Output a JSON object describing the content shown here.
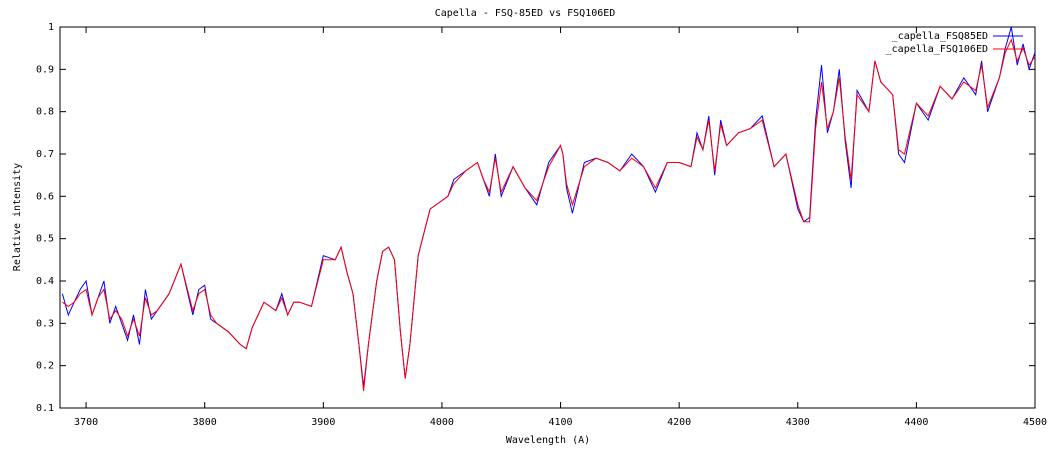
{
  "chart_data": {
    "type": "line",
    "title": "Capella - FSQ-85ED vs FSQ106ED",
    "xlabel": "Wavelength (A)",
    "ylabel": "Relative intensity",
    "x": [
      3680,
      3685,
      3690,
      3695,
      3700,
      3705,
      3710,
      3715,
      3720,
      3725,
      3730,
      3735,
      3740,
      3745,
      3750,
      3755,
      3760,
      3770,
      3780,
      3790,
      3795,
      3800,
      3805,
      3810,
      3820,
      3830,
      3835,
      3840,
      3850,
      3860,
      3865,
      3870,
      3875,
      3880,
      3890,
      3900,
      3910,
      3915,
      3920,
      3925,
      3930,
      3934,
      3938,
      3945,
      3950,
      3955,
      3960,
      3965,
      3969,
      3973,
      3980,
      3990,
      4000,
      4005,
      4010,
      4020,
      4030,
      4035,
      4040,
      4045,
      4050,
      4060,
      4070,
      4080,
      4090,
      4100,
      4102,
      4105,
      4110,
      4120,
      4130,
      4140,
      4150,
      4160,
      4170,
      4180,
      4190,
      4200,
      4210,
      4215,
      4220,
      4225,
      4230,
      4235,
      4240,
      4250,
      4260,
      4270,
      4280,
      4290,
      4300,
      4305,
      4310,
      4315,
      4320,
      4325,
      4330,
      4335,
      4340,
      4345,
      4350,
      4360,
      4365,
      4370,
      4380,
      4385,
      4390,
      4400,
      4410,
      4420,
      4430,
      4440,
      4450,
      4455,
      4460,
      4470,
      4475,
      4480,
      4485,
      4490,
      4495,
      4500
    ],
    "series": [
      {
        "name": "_capella_FSQ85ED",
        "color": "#0000ff",
        "values": [
          0.37,
          0.32,
          0.35,
          0.38,
          0.4,
          0.32,
          0.36,
          0.4,
          0.3,
          0.34,
          0.3,
          0.26,
          0.32,
          0.25,
          0.38,
          0.31,
          0.33,
          0.37,
          0.44,
          0.32,
          0.38,
          0.39,
          0.31,
          0.3,
          0.28,
          0.25,
          0.24,
          0.29,
          0.35,
          0.33,
          0.37,
          0.32,
          0.35,
          0.35,
          0.34,
          0.46,
          0.45,
          0.48,
          0.42,
          0.37,
          0.25,
          0.15,
          0.25,
          0.4,
          0.47,
          0.48,
          0.45,
          0.28,
          0.17,
          0.25,
          0.46,
          0.57,
          0.59,
          0.6,
          0.64,
          0.66,
          0.68,
          0.64,
          0.6,
          0.7,
          0.6,
          0.67,
          0.62,
          0.58,
          0.68,
          0.72,
          0.7,
          0.62,
          0.56,
          0.68,
          0.69,
          0.68,
          0.66,
          0.7,
          0.67,
          0.61,
          0.68,
          0.68,
          0.67,
          0.75,
          0.71,
          0.79,
          0.65,
          0.78,
          0.72,
          0.75,
          0.76,
          0.79,
          0.67,
          0.7,
          0.57,
          0.54,
          0.55,
          0.78,
          0.91,
          0.75,
          0.8,
          0.9,
          0.73,
          0.62,
          0.85,
          0.8,
          0.92,
          0.87,
          0.84,
          0.7,
          0.68,
          0.82,
          0.78,
          0.86,
          0.83,
          0.88,
          0.84,
          0.92,
          0.8,
          0.88,
          0.95,
          1.0,
          0.91,
          0.96,
          0.9,
          0.94
        ]
      },
      {
        "name": "_capella_FSQ106ED",
        "color": "#ff0000",
        "values": [
          0.35,
          0.34,
          0.35,
          0.37,
          0.38,
          0.32,
          0.36,
          0.38,
          0.31,
          0.33,
          0.31,
          0.27,
          0.31,
          0.27,
          0.36,
          0.32,
          0.33,
          0.37,
          0.44,
          0.33,
          0.37,
          0.38,
          0.32,
          0.3,
          0.28,
          0.25,
          0.24,
          0.29,
          0.35,
          0.33,
          0.36,
          0.32,
          0.35,
          0.35,
          0.34,
          0.45,
          0.45,
          0.48,
          0.42,
          0.37,
          0.25,
          0.14,
          0.25,
          0.4,
          0.47,
          0.48,
          0.45,
          0.28,
          0.17,
          0.25,
          0.46,
          0.57,
          0.59,
          0.6,
          0.63,
          0.66,
          0.68,
          0.64,
          0.61,
          0.69,
          0.61,
          0.67,
          0.62,
          0.59,
          0.67,
          0.72,
          0.7,
          0.63,
          0.58,
          0.67,
          0.69,
          0.68,
          0.66,
          0.69,
          0.67,
          0.62,
          0.68,
          0.68,
          0.67,
          0.74,
          0.71,
          0.78,
          0.66,
          0.77,
          0.72,
          0.75,
          0.76,
          0.78,
          0.67,
          0.7,
          0.58,
          0.54,
          0.54,
          0.76,
          0.87,
          0.76,
          0.8,
          0.88,
          0.74,
          0.64,
          0.84,
          0.8,
          0.92,
          0.87,
          0.84,
          0.71,
          0.7,
          0.82,
          0.79,
          0.86,
          0.83,
          0.87,
          0.85,
          0.91,
          0.81,
          0.88,
          0.94,
          0.97,
          0.92,
          0.95,
          0.91,
          0.93
        ]
      }
    ],
    "xlim": [
      3678,
      4500
    ],
    "xticks": [
      3700,
      3800,
      3900,
      4000,
      4100,
      4200,
      4300,
      4400,
      4500
    ],
    "ylim": [
      0.1,
      1
    ],
    "yticks": [
      0.1,
      0.2,
      0.3,
      0.4,
      0.5,
      0.6,
      0.7,
      0.8,
      0.9,
      1
    ],
    "legend": "top-right"
  }
}
